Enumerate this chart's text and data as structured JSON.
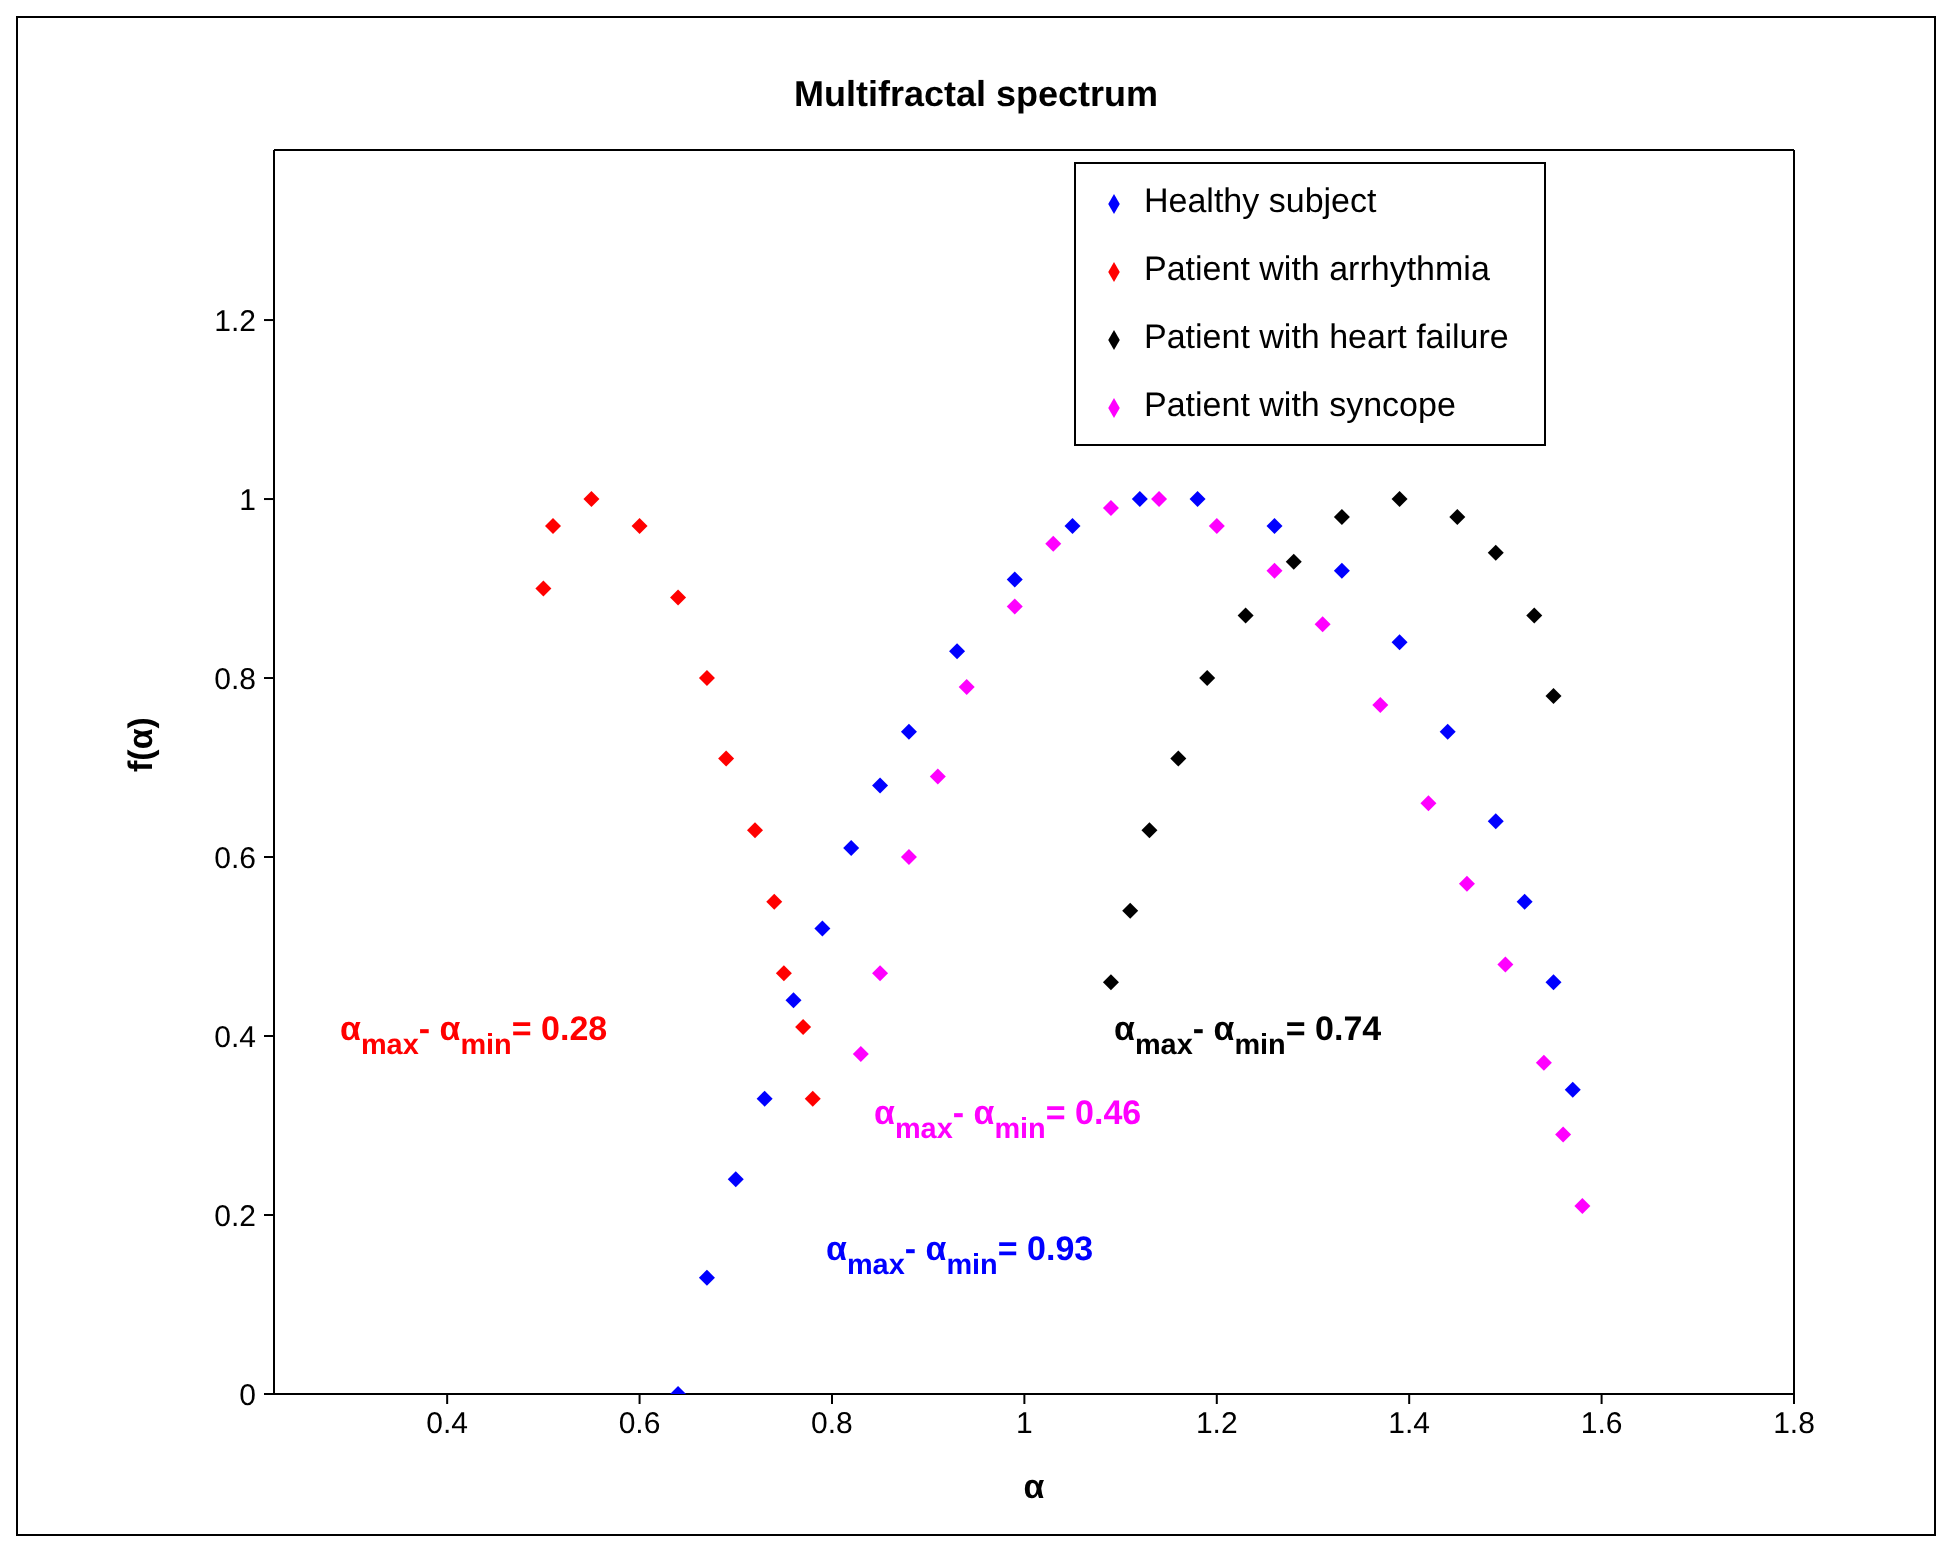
{
  "chart_data": {
    "type": "scatter",
    "title": "Multifractal spectrum",
    "xlabel": "α",
    "ylabel": "f(α)",
    "marker": "diamond",
    "legend": "top right",
    "xlim": [
      0.22,
      1.8
    ],
    "xticks": [
      0.4,
      0.6,
      0.8,
      1,
      1.2,
      1.4,
      1.6,
      1.8
    ],
    "ylim": [
      0,
      1.39
    ],
    "yticks": [
      0,
      0.2,
      0.4,
      0.6,
      0.8,
      1,
      1.2
    ],
    "series": [
      {
        "name": "Healthy subject",
        "color": "#0000ff",
        "x": [
          0.64,
          0.67,
          0.7,
          0.73,
          0.76,
          0.79,
          0.82,
          0.85,
          0.88,
          0.93,
          0.99,
          1.05,
          1.12,
          1.18,
          1.26,
          1.33,
          1.39,
          1.44,
          1.49,
          1.52,
          1.55,
          1.57
        ],
        "values": [
          0.0,
          0.13,
          0.24,
          0.33,
          0.44,
          0.52,
          0.61,
          0.68,
          0.74,
          0.83,
          0.91,
          0.97,
          1.0,
          1.0,
          0.97,
          0.92,
          0.84,
          0.74,
          0.64,
          0.55,
          0.46,
          0.34
        ]
      },
      {
        "name": "Patient with arrhythmia",
        "color": "#ff0000",
        "x": [
          0.5,
          0.51,
          0.55,
          0.6,
          0.64,
          0.67,
          0.69,
          0.72,
          0.74,
          0.75,
          0.77,
          0.78
        ],
        "values": [
          0.9,
          0.97,
          1.0,
          0.97,
          0.89,
          0.8,
          0.71,
          0.63,
          0.55,
          0.47,
          0.41,
          0.33
        ]
      },
      {
        "name": "Patient with heart failure",
        "color": "#000000",
        "x": [
          1.09,
          1.11,
          1.13,
          1.16,
          1.19,
          1.23,
          1.28,
          1.33,
          1.39,
          1.45,
          1.49,
          1.53,
          1.55
        ],
        "values": [
          0.46,
          0.54,
          0.63,
          0.71,
          0.8,
          0.87,
          0.93,
          0.98,
          1.0,
          0.98,
          0.94,
          0.87,
          0.78
        ]
      },
      {
        "name": "Patient with syncope",
        "color": "#ff00ff",
        "x": [
          0.83,
          0.85,
          0.88,
          0.91,
          0.94,
          0.99,
          1.03,
          1.09,
          1.14,
          1.2,
          1.26,
          1.31,
          1.37,
          1.42,
          1.46,
          1.5,
          1.54,
          1.56,
          1.58
        ],
        "values": [
          0.38,
          0.47,
          0.6,
          0.69,
          0.79,
          0.88,
          0.95,
          0.99,
          1.0,
          0.97,
          0.92,
          0.86,
          0.77,
          0.66,
          0.57,
          0.48,
          0.37,
          0.29,
          0.21
        ]
      }
    ],
    "annotations": [
      "α$_{max}$- α$_{min}$= 0.28",
      "α$_{max}$- α$_{min}$= 0.74",
      "α$_{max}$- α$_{min}$= 0.46",
      "α$_{max}$- α$_{min}$= 0.93"
    ]
  }
}
